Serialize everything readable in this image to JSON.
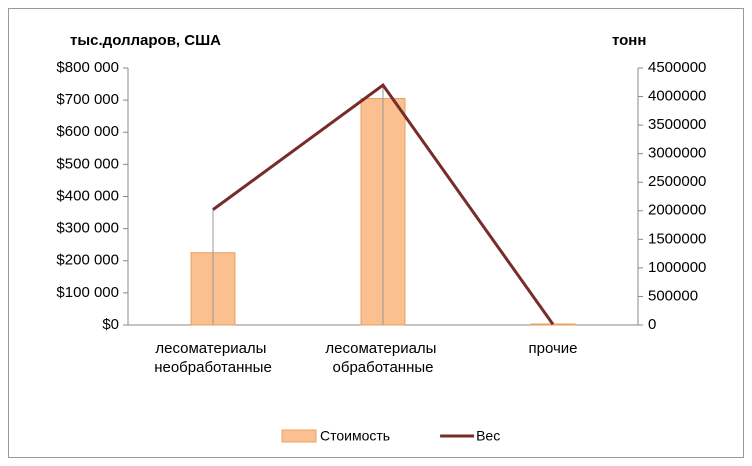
{
  "chart_data": {
    "type": "bar-line",
    "y_title": "тыс.долларов, США",
    "y2_title": "тонн",
    "categories": [
      "лесоматериалы необработанные",
      "лесоматериалы обработанные",
      "прочие"
    ],
    "series": [
      {
        "name": "Стоимость",
        "type": "bar",
        "color": "#fac090",
        "values": [
          225000,
          705000,
          3000
        ]
      },
      {
        "name": "Вес",
        "type": "line",
        "axis": "y2",
        "color": "#772c2a",
        "values": [
          2020000,
          4200000,
          10000
        ]
      }
    ],
    "ylim": [
      0,
      800000
    ],
    "yticks": [
      {
        "value": 0,
        "label": "$0"
      },
      {
        "value": 100000,
        "label": "$100 000"
      },
      {
        "value": 200000,
        "label": "$200 000"
      },
      {
        "value": 300000,
        "label": "$300 000"
      },
      {
        "value": 400000,
        "label": "$400 000"
      },
      {
        "value": 500000,
        "label": "$500 000"
      },
      {
        "value": 600000,
        "label": "$600 000"
      },
      {
        "value": 700000,
        "label": "$700 000"
      },
      {
        "value": 800000,
        "label": "$800 000"
      }
    ],
    "y2lim": [
      0,
      4500000
    ],
    "y2ticks": [
      0,
      500000,
      1000000,
      1500000,
      2000000,
      2500000,
      3000000,
      3500000,
      4000000,
      4500000
    ],
    "legend": "bottom"
  }
}
